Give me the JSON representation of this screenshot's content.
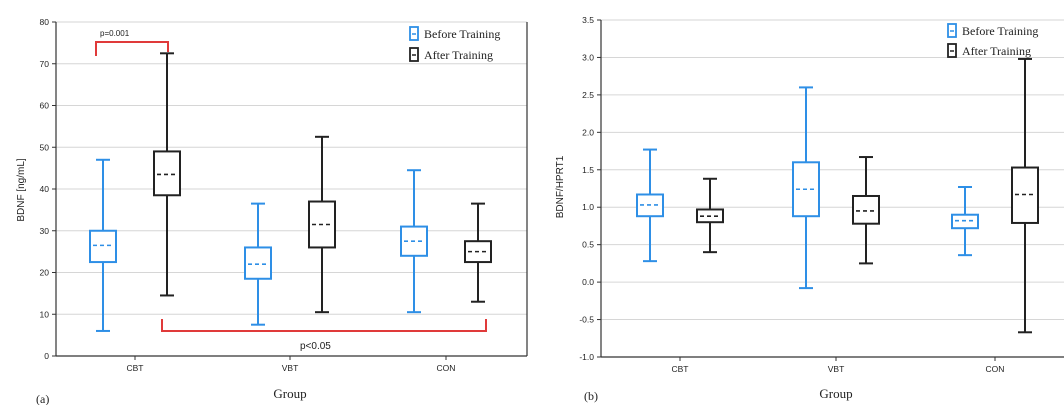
{
  "chart_data": [
    {
      "type": "box",
      "panel_label": "(a)",
      "ylabel": "BDNF [ng/mL]",
      "xlabel": "Group",
      "categories": [
        "CBT",
        "VBT",
        "CON"
      ],
      "ylim": [
        0,
        80
      ],
      "yticks": [
        0,
        10,
        20,
        30,
        40,
        50,
        60,
        70,
        80
      ],
      "ytick_labels": [
        "0",
        "10",
        "20",
        "30",
        "40",
        "50",
        "60",
        "70",
        "80"
      ],
      "grid": true,
      "legend_position": "top-right",
      "series": [
        {
          "name": "Before Training",
          "color": "#2e8fe6",
          "boxes": [
            {
              "min": 6,
              "q1": 22.5,
              "median": 26.5,
              "q3": 30,
              "max": 47
            },
            {
              "min": 7.5,
              "q1": 18.5,
              "median": 22,
              "q3": 26,
              "max": 36.5
            },
            {
              "min": 10.5,
              "q1": 24,
              "median": 27.5,
              "q3": 31,
              "max": 44.5
            }
          ]
        },
        {
          "name": "After Training",
          "color": "#222222",
          "boxes": [
            {
              "min": 14.5,
              "q1": 38.5,
              "median": 43.5,
              "q3": 49,
              "max": 72.5
            },
            {
              "min": 10.5,
              "q1": 26,
              "median": 31.5,
              "q3": 37,
              "max": 52.5
            },
            {
              "min": 13,
              "q1": 22.5,
              "median": 25,
              "q3": 27.5,
              "max": 36.5
            }
          ]
        }
      ],
      "annotations": [
        {
          "text": "p=0.001",
          "color": "#e03a3a"
        },
        {
          "text": "p<0.05",
          "color": "#e03a3a"
        }
      ]
    },
    {
      "type": "box",
      "panel_label": "(b)",
      "ylabel": "BDNF/HPRT1",
      "xlabel": "Group",
      "categories": [
        "CBT",
        "VBT",
        "CON"
      ],
      "ylim": [
        -1.0,
        3.5
      ],
      "yticks": [
        -1.0,
        -0.5,
        0.0,
        0.5,
        1.0,
        1.5,
        2.0,
        2.5,
        3.0,
        3.5
      ],
      "ytick_labels": [
        "-1.0",
        "-0.5",
        "0.0",
        "0.5",
        "1.0",
        "1.5",
        "2.0",
        "2.5",
        "3.0",
        "3.5"
      ],
      "grid": true,
      "legend_position": "top-right",
      "series": [
        {
          "name": "Before Training",
          "color": "#2e8fe6",
          "boxes": [
            {
              "min": 0.28,
              "q1": 0.88,
              "median": 1.03,
              "q3": 1.17,
              "max": 1.77
            },
            {
              "min": -0.08,
              "q1": 0.88,
              "median": 1.24,
              "q3": 1.6,
              "max": 2.6
            },
            {
              "min": 0.36,
              "q1": 0.72,
              "median": 0.82,
              "q3": 0.9,
              "max": 1.27
            }
          ]
        },
        {
          "name": "After Training",
          "color": "#222222",
          "boxes": [
            {
              "min": 0.4,
              "q1": 0.8,
              "median": 0.88,
              "q3": 0.97,
              "max": 1.38
            },
            {
              "min": 0.25,
              "q1": 0.78,
              "median": 0.95,
              "q3": 1.15,
              "max": 1.67
            },
            {
              "min": -0.67,
              "q1": 0.79,
              "median": 1.17,
              "q3": 1.53,
              "max": 2.98
            }
          ]
        }
      ]
    }
  ]
}
